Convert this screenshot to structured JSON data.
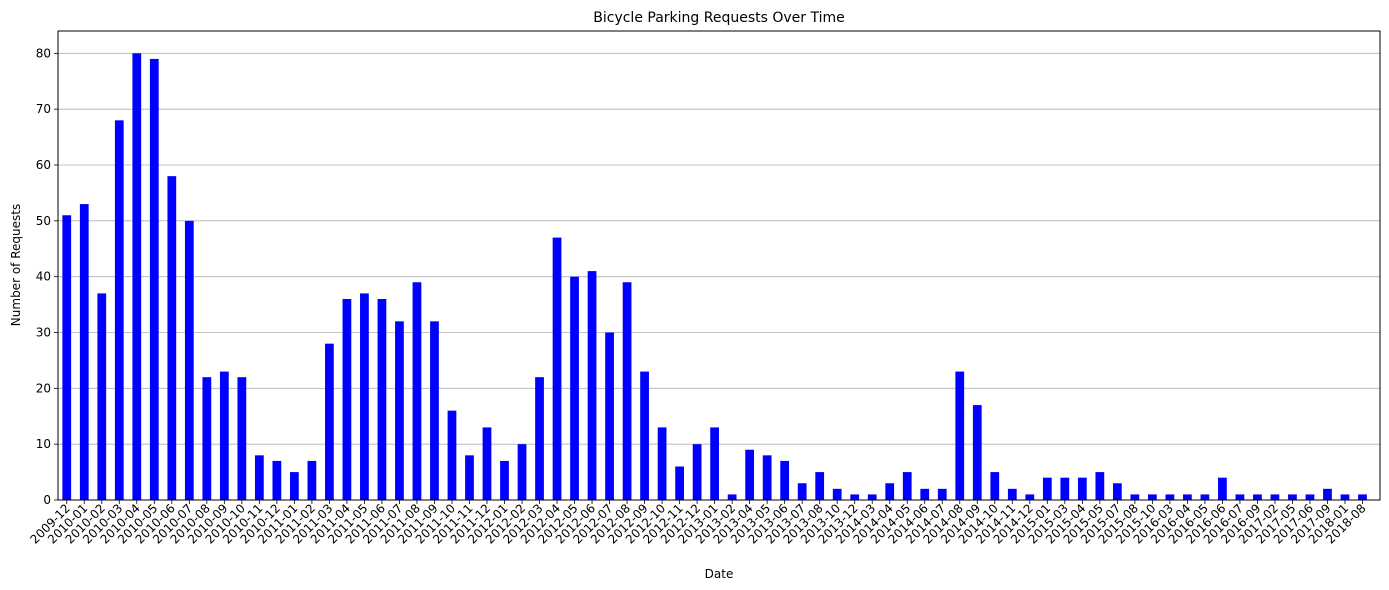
{
  "chart_data": {
    "type": "bar",
    "title": "Bicycle Parking Requests Over Time",
    "xlabel": "Date",
    "ylabel": "Number of Requests",
    "ylim": [
      0,
      84
    ],
    "yticks": [
      0,
      10,
      20,
      30,
      40,
      50,
      60,
      70,
      80
    ],
    "grid": "y",
    "bar_color": "#0000ff",
    "categories": [
      "2009-12",
      "2010-01",
      "2010-02",
      "2010-03",
      "2010-04",
      "2010-05",
      "2010-06",
      "2010-07",
      "2010-08",
      "2010-09",
      "2010-10",
      "2010-11",
      "2010-12",
      "2011-01",
      "2011-02",
      "2011-03",
      "2011-04",
      "2011-05",
      "2011-06",
      "2011-07",
      "2011-08",
      "2011-09",
      "2011-10",
      "2011-11",
      "2011-12",
      "2012-01",
      "2012-02",
      "2012-03",
      "2012-04",
      "2012-05",
      "2012-06",
      "2012-07",
      "2012-08",
      "2012-09",
      "2012-10",
      "2012-11",
      "2012-12",
      "2013-01",
      "2013-02",
      "2013-04",
      "2013-05",
      "2013-06",
      "2013-07",
      "2013-08",
      "2013-10",
      "2013-12",
      "2014-03",
      "2014-04",
      "2014-05",
      "2014-06",
      "2014-07",
      "2014-08",
      "2014-09",
      "2014-10",
      "2014-11",
      "2014-12",
      "2015-01",
      "2015-03",
      "2015-04",
      "2015-05",
      "2015-07",
      "2015-08",
      "2015-10",
      "2016-03",
      "2016-04",
      "2016-05",
      "2016-06",
      "2016-07",
      "2016-09",
      "2017-02",
      "2017-05",
      "2017-06",
      "2017-09",
      "2018-01",
      "2018-08"
    ],
    "values": [
      51,
      53,
      37,
      68,
      80,
      79,
      58,
      50,
      22,
      23,
      22,
      8,
      7,
      5,
      7,
      28,
      36,
      37,
      36,
      32,
      39,
      32,
      16,
      8,
      13,
      7,
      10,
      22,
      47,
      40,
      41,
      30,
      39,
      23,
      13,
      6,
      10,
      13,
      1,
      9,
      8,
      7,
      3,
      5,
      2,
      1,
      1,
      3,
      5,
      2,
      2,
      23,
      17,
      5,
      2,
      1,
      4,
      4,
      4,
      5,
      3,
      1,
      1,
      1,
      1,
      1,
      4,
      1,
      1,
      1,
      1,
      1,
      2,
      1,
      1
    ]
  }
}
